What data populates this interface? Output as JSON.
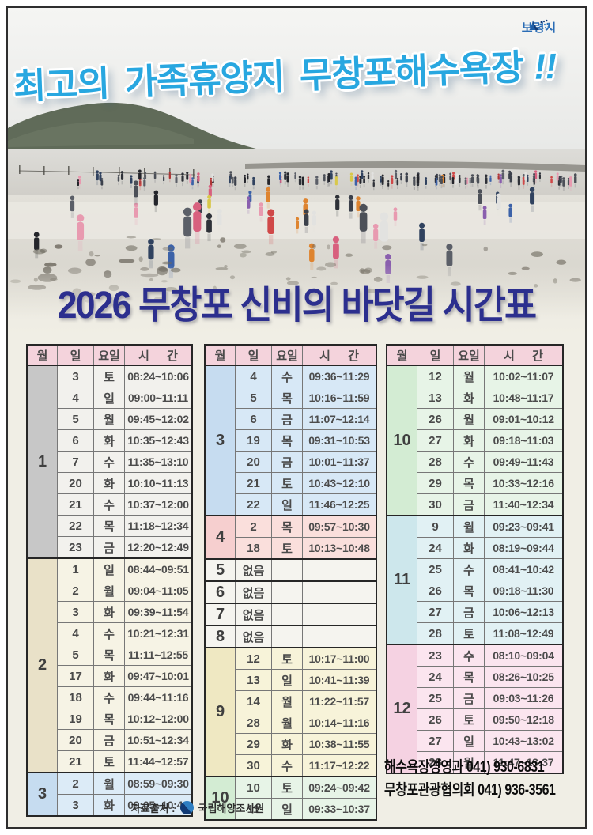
{
  "photo": {
    "headline": "최고의 가족휴양지 무창포해수욕장",
    "headline_bang": "!!",
    "city_logo_text": "보령시"
  },
  "title": "2026 무창포 신비의 바닷길 시간표",
  "columns": [
    "월",
    "일",
    "요일",
    "시 간"
  ],
  "colors": {
    "header_bg": "#f4d3dc",
    "headline_blue": "#28a7e0",
    "title_navy": "#2c2f8e",
    "city_logo_blue": "#2a6cb5"
  },
  "tables": [
    {
      "groups": [
        {
          "month": "1",
          "month_bg": "#c7c7c7",
          "row_bg": "#f2f1ed",
          "rows": [
            {
              "day": "3",
              "weekday": "토",
              "time": "08:24~10:06"
            },
            {
              "day": "4",
              "weekday": "일",
              "time": "09:00~11:11"
            },
            {
              "day": "5",
              "weekday": "월",
              "time": "09:45~12:02"
            },
            {
              "day": "6",
              "weekday": "화",
              "time": "10:35~12:43"
            },
            {
              "day": "7",
              "weekday": "수",
              "time": "11:35~13:10"
            },
            {
              "day": "20",
              "weekday": "화",
              "time": "10:10~11:13"
            },
            {
              "day": "21",
              "weekday": "수",
              "time": "10:37~12:00"
            },
            {
              "day": "22",
              "weekday": "목",
              "time": "11:18~12:34"
            },
            {
              "day": "23",
              "weekday": "금",
              "time": "12:20~12:49"
            }
          ]
        },
        {
          "month": "2",
          "month_bg": "#e9e1c8",
          "row_bg": "#f6f3e5",
          "rows": [
            {
              "day": "1",
              "weekday": "일",
              "time": "08:44~09:51"
            },
            {
              "day": "2",
              "weekday": "월",
              "time": "09:04~11:05"
            },
            {
              "day": "3",
              "weekday": "화",
              "time": "09:39~11:54"
            },
            {
              "day": "4",
              "weekday": "수",
              "time": "10:21~12:31"
            },
            {
              "day": "5",
              "weekday": "목",
              "time": "11:11~12:55"
            },
            {
              "day": "17",
              "weekday": "화",
              "time": "09:47~10:01"
            },
            {
              "day": "18",
              "weekday": "수",
              "time": "09:44~11:16"
            },
            {
              "day": "19",
              "weekday": "목",
              "time": "10:12~12:00"
            },
            {
              "day": "20",
              "weekday": "금",
              "time": "10:51~12:34"
            },
            {
              "day": "21",
              "weekday": "토",
              "time": "11:44~12:57"
            }
          ]
        },
        {
          "month": "3",
          "month_bg": "#c6dcf0",
          "row_bg": "#dcebf7",
          "rows": [
            {
              "day": "2",
              "weekday": "월",
              "time": "08:59~09:30"
            },
            {
              "day": "3",
              "weekday": "화",
              "time": "09:05~10:46"
            }
          ]
        }
      ]
    },
    {
      "groups": [
        {
          "month": "3",
          "month_bg": "#c6dcf0",
          "row_bg": "#d7e8f6",
          "rows": [
            {
              "day": "4",
              "weekday": "수",
              "time": "09:36~11:29"
            },
            {
              "day": "5",
              "weekday": "목",
              "time": "10:16~11:59"
            },
            {
              "day": "6",
              "weekday": "금",
              "time": "11:07~12:14"
            },
            {
              "day": "19",
              "weekday": "목",
              "time": "09:31~10:53"
            },
            {
              "day": "20",
              "weekday": "금",
              "time": "10:01~11:37"
            },
            {
              "day": "21",
              "weekday": "토",
              "time": "10:43~12:10"
            },
            {
              "day": "22",
              "weekday": "일",
              "time": "11:46~12:25"
            }
          ]
        },
        {
          "month": "4",
          "month_bg": "#f6cfcf",
          "row_bg": "#fadfdc",
          "rows": [
            {
              "day": "2",
              "weekday": "목",
              "time": "09:57~10:30"
            },
            {
              "day": "18",
              "weekday": "토",
              "time": "10:13~10:48"
            }
          ]
        },
        {
          "month": "5",
          "month_bg": "#f5f4ef",
          "row_bg": "#f5f4ef",
          "rows": [
            {
              "day": "없음",
              "weekday": "",
              "time": ""
            }
          ]
        },
        {
          "month": "6",
          "month_bg": "#f5f4ef",
          "row_bg": "#f5f4ef",
          "rows": [
            {
              "day": "없음",
              "weekday": "",
              "time": ""
            }
          ]
        },
        {
          "month": "7",
          "month_bg": "#f5f4ef",
          "row_bg": "#f5f4ef",
          "rows": [
            {
              "day": "없음",
              "weekday": "",
              "time": ""
            }
          ]
        },
        {
          "month": "8",
          "month_bg": "#f5f4ef",
          "row_bg": "#f5f4ef",
          "rows": [
            {
              "day": "없음",
              "weekday": "",
              "time": ""
            }
          ]
        },
        {
          "month": "9",
          "month_bg": "#efe8c2",
          "row_bg": "#f7f3d9",
          "rows": [
            {
              "day": "12",
              "weekday": "토",
              "time": "10:17~11:00"
            },
            {
              "day": "13",
              "weekday": "일",
              "time": "10:41~11:39"
            },
            {
              "day": "14",
              "weekday": "월",
              "time": "11:22~11:57"
            },
            {
              "day": "28",
              "weekday": "월",
              "time": "10:14~11:16"
            },
            {
              "day": "29",
              "weekday": "화",
              "time": "10:38~11:55"
            },
            {
              "day": "30",
              "weekday": "수",
              "time": "11:17~12:22"
            }
          ]
        },
        {
          "month": "10",
          "month_bg": "#d3ecd3",
          "row_bg": "#e7f4e7",
          "rows": [
            {
              "day": "10",
              "weekday": "토",
              "time": "09:24~09:42"
            },
            {
              "day": "11",
              "weekday": "일",
              "time": "09:33~10:37"
            }
          ]
        }
      ]
    },
    {
      "groups": [
        {
          "month": "10",
          "month_bg": "#d3ecd3",
          "row_bg": "#e7f4e7",
          "rows": [
            {
              "day": "12",
              "weekday": "월",
              "time": "10:02~11:07"
            },
            {
              "day": "13",
              "weekday": "화",
              "time": "10:48~11:17"
            },
            {
              "day": "26",
              "weekday": "월",
              "time": "09:01~10:12"
            },
            {
              "day": "27",
              "weekday": "화",
              "time": "09:18~11:03"
            },
            {
              "day": "28",
              "weekday": "수",
              "time": "09:49~11:43"
            },
            {
              "day": "29",
              "weekday": "목",
              "time": "10:33~12:16"
            },
            {
              "day": "30",
              "weekday": "금",
              "time": "11:40~12:34"
            }
          ]
        },
        {
          "month": "11",
          "month_bg": "#cde7ec",
          "row_bg": "#e1f1f4",
          "rows": [
            {
              "day": "9",
              "weekday": "월",
              "time": "09:23~09:41"
            },
            {
              "day": "24",
              "weekday": "화",
              "time": "08:19~09:44"
            },
            {
              "day": "25",
              "weekday": "수",
              "time": "08:41~10:42"
            },
            {
              "day": "26",
              "weekday": "목",
              "time": "09:18~11:30"
            },
            {
              "day": "27",
              "weekday": "금",
              "time": "10:06~12:13"
            },
            {
              "day": "28",
              "weekday": "토",
              "time": "11:08~12:49"
            }
          ]
        },
        {
          "month": "12",
          "month_bg": "#f5d2e2",
          "row_bg": "#fbe5ef",
          "rows": [
            {
              "day": "23",
              "weekday": "수",
              "time": "08:10~09:04"
            },
            {
              "day": "24",
              "weekday": "목",
              "time": "08:26~10:25"
            },
            {
              "day": "25",
              "weekday": "금",
              "time": "09:03~11:26"
            },
            {
              "day": "26",
              "weekday": "토",
              "time": "09:50~12:18"
            },
            {
              "day": "27",
              "weekday": "일",
              "time": "10:43~13:02"
            },
            {
              "day": "28",
              "weekday": "월",
              "time": "11:47~13:37"
            }
          ]
        }
      ]
    }
  ],
  "footer": {
    "source_label": "자료출처 :",
    "source_org": "국립해양조사원",
    "contacts": [
      "해수욕장경영과 041) 930-6831",
      "무창포관광협의회 041) 936-3561"
    ]
  }
}
